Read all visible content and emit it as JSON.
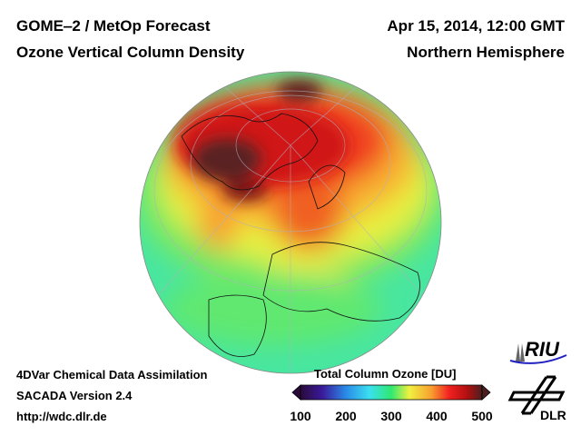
{
  "header": {
    "title_left_1": "GOME‒2 / MetOp Forecast",
    "title_left_2": "Ozone Vertical Column Density",
    "title_right_1": "Apr 15, 2014, 12:00 GMT",
    "title_right_2": "Northern Hemisphere"
  },
  "footer": {
    "line1": "4DVar Chemical Data Assimilation",
    "line2": "SACADA Version 2.4",
    "line3": "http://wdc.dlr.de"
  },
  "colorbar": {
    "title": "Total Column Ozone [DU]",
    "ticks": [
      "100",
      "200",
      "300",
      "400",
      "500"
    ],
    "colors": [
      "#2a0a3a",
      "#3a1a9a",
      "#2a7ae8",
      "#3ae0f0",
      "#30e890",
      "#40e030",
      "#f0f040",
      "#f8a030",
      "#f02020",
      "#b01010",
      "#4a2020"
    ]
  },
  "logos": {
    "riu": "RIU",
    "dlr": "DLR"
  }
}
